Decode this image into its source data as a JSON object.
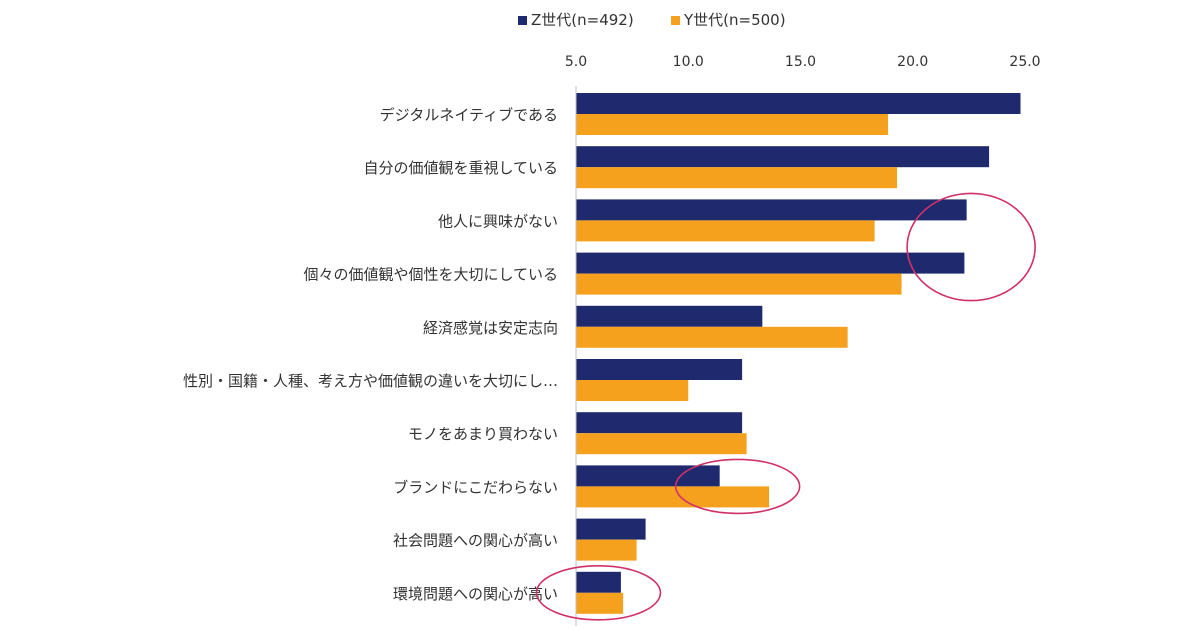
{
  "chart_data": {
    "type": "bar",
    "orientation": "horizontal",
    "title": "",
    "xlabel": "",
    "ylabel": "",
    "xlim": [
      5.0,
      25.0
    ],
    "ticks": [
      5.0,
      10.0,
      15.0,
      20.0,
      25.0
    ],
    "tick_labels": [
      "5.0",
      "10.0",
      "15.0",
      "20.0",
      "25.0"
    ],
    "axis_position": "top",
    "grid": false,
    "legend_position": "top-center",
    "categories": [
      "デジタルネイティブである",
      "自分の価値観を重視している",
      "他人に興味がない",
      "個々の価値観や個性を大切にしている",
      "経済感覚は安定志向",
      "性別・国籍・人種、考え方や価値観の違いを大切にし…",
      "モノをあまり買わない",
      "ブランドにこだわらない",
      "社会問題への関心が高い",
      "環境問題への関心が高い"
    ],
    "series": [
      {
        "name": "Z世代(n=492)",
        "color": "#1f2a6e",
        "values": [
          24.8,
          23.4,
          22.4,
          22.3,
          13.3,
          12.4,
          12.4,
          11.4,
          8.1,
          7.0
        ]
      },
      {
        "name": "Y世代(n=500)",
        "color": "#f5a11e",
        "values": [
          18.9,
          19.3,
          18.3,
          19.5,
          17.1,
          10.0,
          12.6,
          13.6,
          7.7,
          7.1
        ]
      }
    ],
    "annotations": [
      {
        "shape": "ellipse",
        "color": "#d1306a",
        "around": [
          "他人に興味がない",
          "個々の価値観や個性を大切にしている"
        ],
        "x_center": 22.6
      },
      {
        "shape": "ellipse",
        "color": "#d1306a",
        "around": [
          "ブランドにこだわらない"
        ],
        "x_center": 12.2
      },
      {
        "shape": "ellipse",
        "color": "#d1306a",
        "around": [
          "環境問題への関心が高い"
        ],
        "x_center": 6.0
      }
    ]
  }
}
